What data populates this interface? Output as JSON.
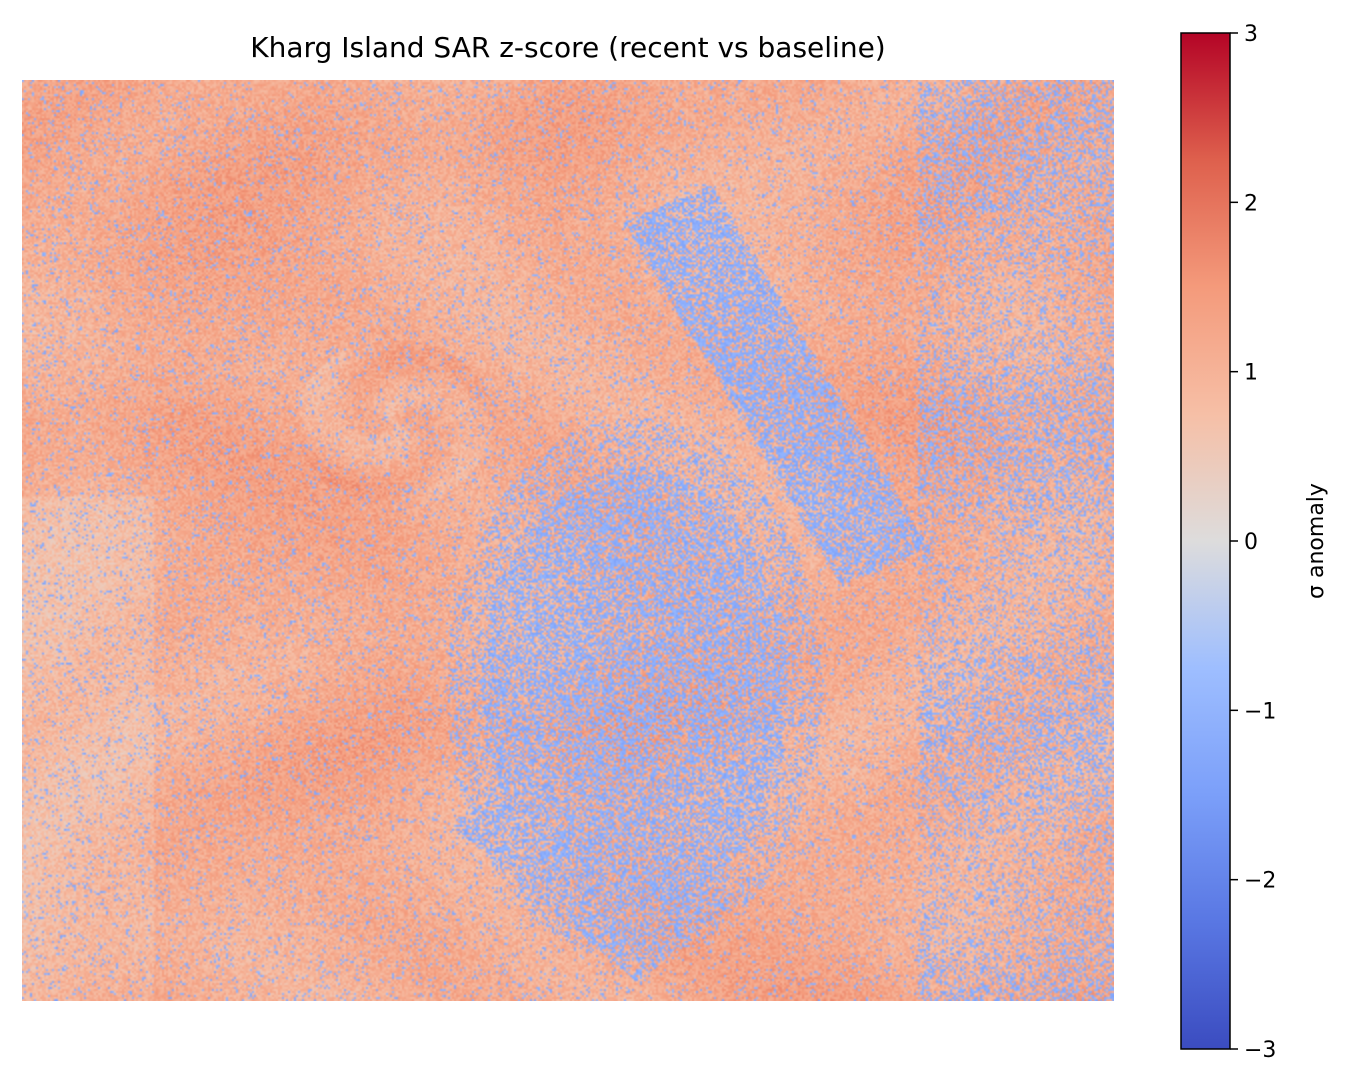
{
  "chart_data": {
    "type": "heatmap",
    "title": "Kharg Island SAR z-score (recent vs baseline)",
    "colormap": "coolwarm",
    "colorbar": {
      "label": "σ anomaly",
      "vmin": -3,
      "vmax": 3,
      "ticks": [
        3,
        2,
        1,
        0,
        -1,
        -2,
        -3
      ],
      "tick_labels": [
        "3",
        "2",
        "1",
        "0",
        "−1",
        "−2",
        "−3"
      ]
    },
    "axes_visible": false,
    "regions": [
      {
        "description": "background sea surface with swirling texture",
        "z_approx": 1.2
      },
      {
        "description": "central-lower oval patch",
        "z_approx": -0.9
      },
      {
        "description": "diagonal streak upper-center-right",
        "z_approx": -1.0
      },
      {
        "description": "right-side mottled area",
        "z_approx": 0.6
      }
    ]
  }
}
